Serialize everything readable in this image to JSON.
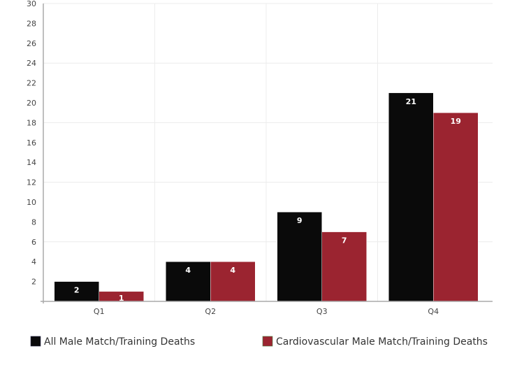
{
  "chart_data": {
    "type": "bar",
    "title": "",
    "xlabel": "",
    "ylabel": "",
    "categories": [
      "Q1",
      "Q2",
      "Q3",
      "Q4"
    ],
    "series": [
      {
        "name": "All Male Match/Training Deaths",
        "color": "#0a0a0a",
        "values": [
          2,
          4,
          9,
          21
        ]
      },
      {
        "name": "Cardiovascular Male Match/Training Deaths",
        "color": "#9b2430",
        "values": [
          1,
          4,
          7,
          19
        ]
      }
    ],
    "ylim": [
      0,
      30
    ],
    "yticks": [
      2,
      4,
      6,
      8,
      10,
      12,
      14,
      16,
      18,
      20,
      22,
      24,
      26,
      28,
      30
    ],
    "grid": true,
    "legend_position": "bottom"
  }
}
